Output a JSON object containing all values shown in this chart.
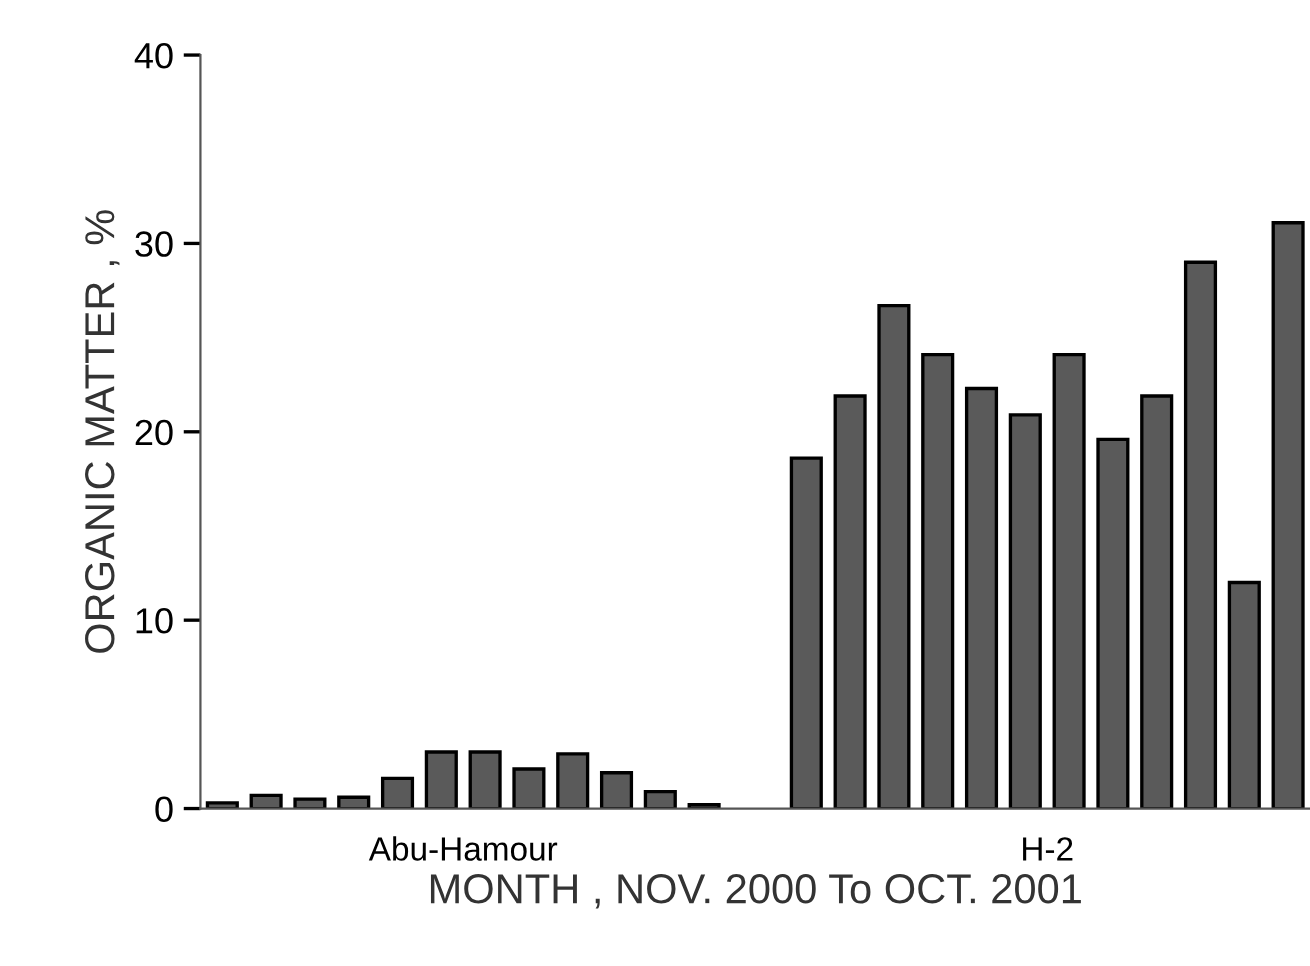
{
  "chart_data": {
    "type": "bar",
    "xlabel": "MONTH , NOV. 2000 To OCT. 2001",
    "ylabel": "ORGANIC MATTER , %",
    "categories": [
      "Abu-Hamour",
      "H-2"
    ],
    "series": [
      {
        "color": "#5a5a5a",
        "values": [
          0.3,
          18.6
        ]
      },
      {
        "color": "#5a5a5a",
        "values": [
          0.7,
          21.9
        ]
      },
      {
        "color": "#5a5a5a",
        "values": [
          0.5,
          26.7
        ]
      },
      {
        "color": "#5a5a5a",
        "values": [
          0.6,
          24.1
        ]
      },
      {
        "color": "#5a5a5a",
        "values": [
          1.6,
          22.3
        ]
      },
      {
        "color": "#5a5a5a",
        "values": [
          3.0,
          20.9
        ]
      },
      {
        "color": "#5a5a5a",
        "values": [
          3.0,
          24.1
        ]
      },
      {
        "color": "#5a5a5a",
        "values": [
          2.1,
          19.6
        ]
      },
      {
        "color": "#5a5a5a",
        "values": [
          2.9,
          21.9
        ]
      },
      {
        "color": "#5a5a5a",
        "values": [
          1.9,
          29.0
        ]
      },
      {
        "color": "#5a5a5a",
        "values": [
          0.9,
          12.0
        ]
      },
      {
        "color": "#5a5a5a",
        "values": [
          0.2,
          31.1
        ]
      }
    ],
    "ylim": [
      0,
      40
    ],
    "yticks": [
      0,
      10,
      20,
      30,
      40
    ],
    "grid": false,
    "legend": false
  }
}
